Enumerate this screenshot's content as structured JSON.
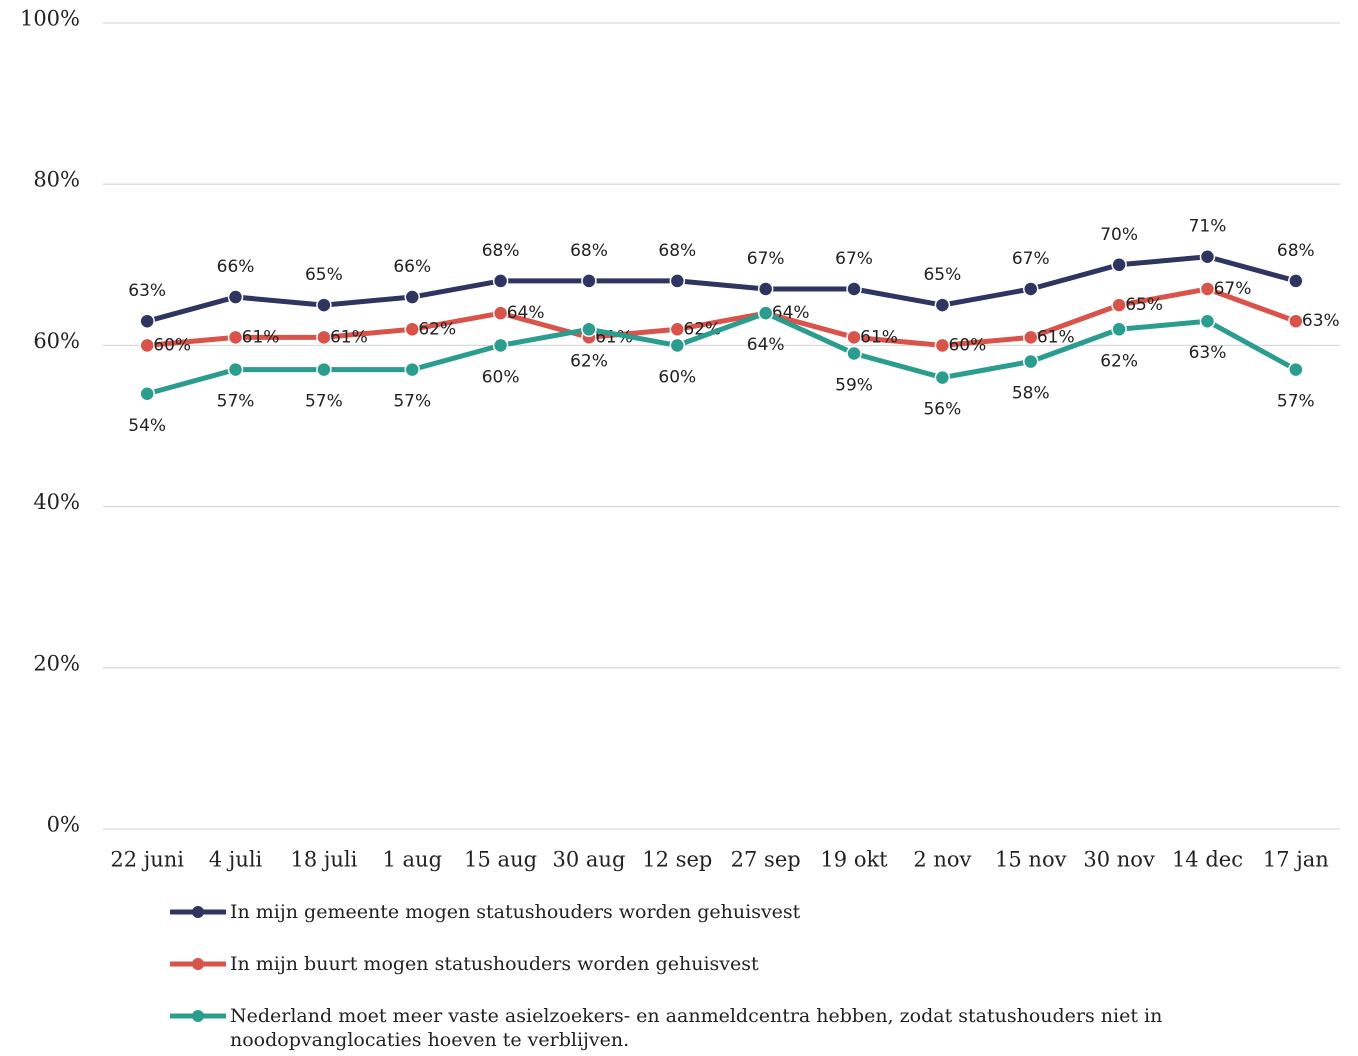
{
  "chart_data": {
    "type": "line",
    "categories": [
      "22 juni",
      "4 juli",
      "18 juli",
      "1 aug",
      "15 aug",
      "30 aug",
      "12 sep",
      "27 sep",
      "19 okt",
      "2 nov",
      "15 nov",
      "30 nov",
      "14 dec",
      "17 jan"
    ],
    "series": [
      {
        "name": "In mijn gemeente mogen statushouders worden gehuisvest",
        "color": "#2e3560",
        "values": [
          63,
          66,
          65,
          66,
          68,
          68,
          68,
          67,
          67,
          65,
          67,
          70,
          71,
          68
        ],
        "value_labels": [
          "63%",
          "66%",
          "65%",
          "66%",
          "68%",
          "68%",
          "68%",
          "67%",
          "67%",
          "65%",
          "67%",
          "70%",
          "71%",
          "68%"
        ]
      },
      {
        "name": "In mijn buurt mogen statushouders worden gehuisvest",
        "color": "#d9534a",
        "values": [
          60,
          61,
          61,
          62,
          64,
          61,
          62,
          64,
          61,
          60,
          61,
          65,
          67,
          63
        ],
        "value_labels": [
          "60%",
          "61%",
          "61%",
          "62%",
          "64%",
          "61%",
          "62%",
          "64%",
          "61%",
          "60%",
          "61%",
          "65%",
          "67%",
          "63%"
        ]
      },
      {
        "name": "Nederland moet meer vaste asielzoekers- en aanmeldcentra hebben, zodat statushouders niet in noodopvanglocaties hoeven te verblijven.",
        "color": "#2a9d8f",
        "values": [
          54,
          57,
          57,
          57,
          60,
          62,
          60,
          64,
          59,
          56,
          58,
          62,
          63,
          57
        ],
        "value_labels": [
          "54%",
          "57%",
          "57%",
          "57%",
          "60%",
          "62%",
          "60%",
          "64%",
          "59%",
          "56%",
          "58%",
          "62%",
          "63%",
          "57%"
        ]
      }
    ],
    "ylim": [
      0,
      100
    ],
    "yticks": [
      {
        "value": 0,
        "label": "0%"
      },
      {
        "value": 20,
        "label": "20%"
      },
      {
        "value": 40,
        "label": "40%"
      },
      {
        "value": 60,
        "label": "60%"
      },
      {
        "value": 80,
        "label": "80%"
      },
      {
        "value": 100,
        "label": "100%"
      }
    ],
    "grid": true
  }
}
